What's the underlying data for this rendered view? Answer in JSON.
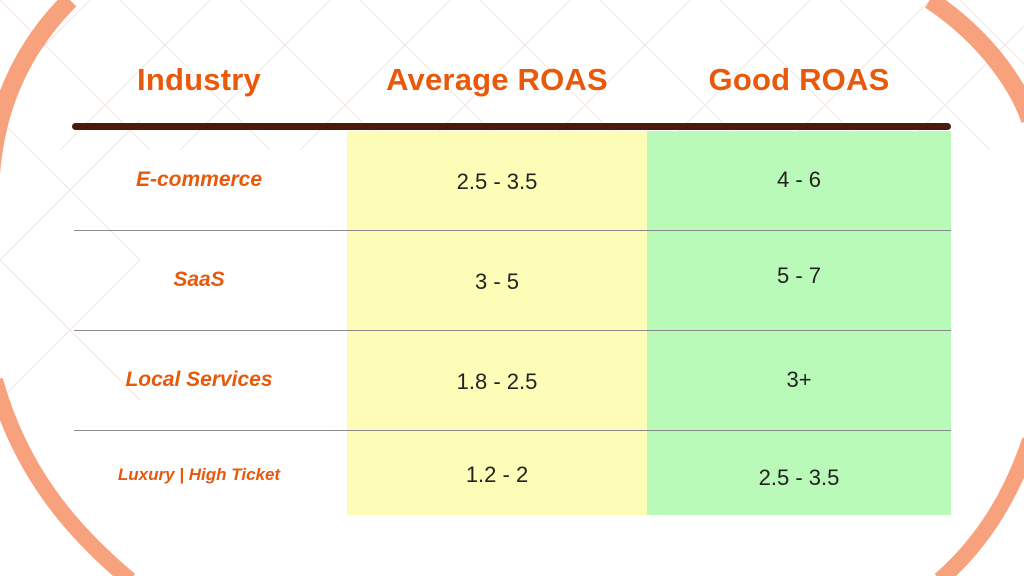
{
  "colors": {
    "accent": "#e8590c",
    "background_ring": "#f7a17d",
    "rule": "#4a1a0c",
    "separator": "#8a8a8a",
    "average_fill": "#fdfdb7",
    "good_fill": "#b9fab8",
    "text": "#222222"
  },
  "table": {
    "headers": [
      "Industry",
      "Average ROAS",
      "Good ROAS"
    ],
    "rows": [
      {
        "industry": "E-commerce",
        "average": "2.5 - 3.5",
        "good": "4 - 6"
      },
      {
        "industry": "SaaS",
        "average": "3 - 5",
        "good": "5 - 7"
      },
      {
        "industry": "Local Services",
        "average": "1.8 - 2.5",
        "good": "3+"
      },
      {
        "industry": "Luxury | High Ticket",
        "average": "1.2 - 2",
        "good": "2.5 - 3.5"
      }
    ]
  }
}
